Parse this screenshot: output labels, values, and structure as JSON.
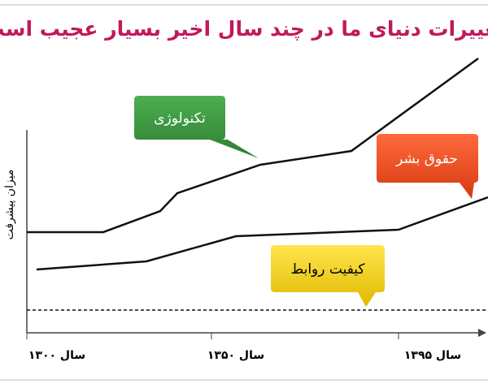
{
  "title": "تغییرات دنیای ما در چند سال اخیر بسیار عجیب است",
  "y_axis_label": "میزان پیشرفت",
  "x_labels": [
    "سال ۱۳۰۰",
    "سال ۱۳۵۰",
    "سال ۱۳۹۵"
  ],
  "callouts": [
    "تکنولوژی",
    "حقوق بشر",
    "کیفیت روابط"
  ]
}
